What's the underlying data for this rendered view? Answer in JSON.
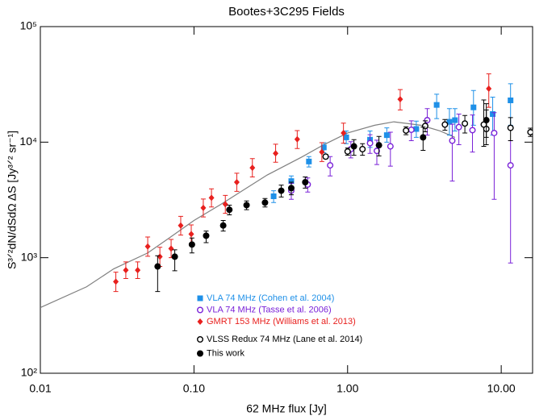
{
  "chart_data": {
    "type": "scatter",
    "title": "Bootes+3C295 Fields",
    "xlabel": "62 MHz flux [Jy]",
    "ylabel": "S³ᐟ²dN/dSdΩ ΔS [Jy³ᐟ² sr⁻¹]",
    "xlog": true,
    "ylog": true,
    "xlim": [
      0.01,
      16
    ],
    "ylim": [
      100,
      100000
    ],
    "xticks": [
      0.01,
      {
        "value": 0.1,
        "label": "0.10"
      },
      {
        "value": 1,
        "label": "1.00"
      },
      {
        "value": 10,
        "label": "10.00"
      }
    ],
    "yticks": [
      {
        "value": 100,
        "label": "10²"
      },
      {
        "value": 1000,
        "label": "10³"
      },
      {
        "value": 10000,
        "label": "10⁴"
      },
      {
        "value": 100000,
        "label": "10⁵"
      }
    ],
    "legend_loc": "lower left",
    "series": [
      {
        "color": "#808080",
        "marker": "line",
        "x": [
          0.01,
          0.02,
          0.03,
          0.05,
          0.07,
          0.1,
          0.15,
          0.2,
          0.3,
          0.5,
          0.7,
          1.0,
          1.5,
          2.0,
          3.0,
          4.0,
          5.0
        ],
        "y": [
          370,
          560,
          800,
          1100,
          1500,
          2100,
          2900,
          3700,
          5200,
          7400,
          9500,
          12000,
          14000,
          15000,
          14000,
          12500,
          11000
        ]
      },
      {
        "name": "VLA 74 MHz (Cohen et al. 2004)",
        "color": "#1e90e8",
        "marker": "square",
        "x": [
          0.33,
          0.43,
          0.56,
          0.7,
          0.98,
          1.4,
          1.8,
          2.8,
          3.8,
          4.6,
          5.0,
          6.6,
          8.8,
          11.5
        ],
        "y": [
          3400,
          4600,
          6800,
          9000,
          11000,
          10500,
          11500,
          13000,
          21000,
          15000,
          15500,
          20000,
          17500,
          23000
        ],
        "err_low": [
          400,
          500,
          700,
          900,
          1300,
          1500,
          1500,
          2000,
          5000,
          3500,
          3000,
          6000,
          6000,
          9000
        ],
        "err_high": [
          400,
          500,
          700,
          900,
          1500,
          2000,
          1800,
          2200,
          5000,
          4500,
          4000,
          8000,
          7000,
          9000
        ]
      },
      {
        "name": "VLA 74 MHz (Tasse et al. 2006)",
        "color": "#7a22d8",
        "marker": "open-circle",
        "x": [
          0.43,
          0.55,
          0.77,
          1.05,
          1.4,
          1.55,
          1.9,
          2.6,
          3.3,
          4.8,
          5.3,
          6.5,
          9.0,
          11.5
        ],
        "y": [
          3800,
          4300,
          6300,
          8700,
          9800,
          8400,
          9200,
          12800,
          15500,
          10300,
          13500,
          12700,
          12000,
          6300
        ],
        "err_low": [
          600,
          600,
          1200,
          1400,
          1800,
          2000,
          3000,
          2500,
          4000,
          5700,
          4000,
          4500,
          8800,
          5400
        ],
        "err_high": [
          600,
          600,
          1200,
          1400,
          1800,
          2000,
          3000,
          2500,
          4000,
          4000,
          4000,
          4500,
          6000,
          4000
        ]
      },
      {
        "name": "GMRT 153 MHz (Williams et al. 2013)",
        "color": "#e8201e",
        "marker": "diamond",
        "x": [
          0.031,
          0.036,
          0.043,
          0.05,
          0.06,
          0.071,
          0.082,
          0.096,
          0.115,
          0.13,
          0.16,
          0.19,
          0.24,
          0.34,
          0.47,
          0.68,
          0.94,
          2.2,
          8.3
        ],
        "y": [
          620,
          780,
          780,
          1250,
          1020,
          1200,
          1900,
          1600,
          2700,
          3300,
          2900,
          4500,
          6000,
          8000,
          10600,
          8200,
          12000,
          23500,
          29000
        ],
        "err_low": [
          110,
          120,
          120,
          220,
          180,
          200,
          330,
          280,
          450,
          550,
          480,
          750,
          1000,
          1300,
          1800,
          1400,
          2200,
          4500,
          9000
        ],
        "err_high": [
          130,
          140,
          140,
          260,
          210,
          240,
          380,
          320,
          520,
          640,
          560,
          880,
          1200,
          1600,
          2000,
          1700,
          2600,
          5000,
          10000
        ]
      },
      {
        "name": "VLSS Redux 74 MHz (Lane et al. 2014)",
        "color": "#000000",
        "marker": "open-circle",
        "x": [
          0.72,
          1.0,
          1.25,
          2.4,
          3.2,
          4.3,
          5.8,
          7.7,
          8.0,
          11.5,
          15.5
        ],
        "y": [
          7500,
          8300,
          8700,
          12600,
          13800,
          14200,
          14500,
          14200,
          13000,
          13300,
          12200
        ],
        "err_low": [
          300,
          600,
          1000,
          1000,
          1500,
          1500,
          2500,
          5000,
          3500,
          3000,
          1000
        ],
        "err_high": [
          300,
          600,
          1000,
          1000,
          1500,
          1500,
          2500,
          9000,
          6000,
          3000,
          1000
        ]
      },
      {
        "name": "This work",
        "color": "#000000",
        "marker": "circle",
        "x": [
          0.058,
          0.075,
          0.097,
          0.12,
          0.155,
          0.17,
          0.22,
          0.29,
          0.37,
          0.43,
          0.53,
          1.1,
          1.6,
          3.1,
          8.0
        ],
        "y": [
          840,
          1020,
          1300,
          1550,
          1900,
          2600,
          2850,
          3000,
          3800,
          4000,
          4500,
          9200,
          9400,
          11000,
          15500
        ],
        "err_low": [
          330,
          250,
          200,
          200,
          200,
          250,
          250,
          250,
          450,
          500,
          500,
          1500,
          1800,
          2500,
          4500
        ],
        "err_high": [
          200,
          150,
          180,
          150,
          200,
          250,
          250,
          250,
          450,
          500,
          500,
          1300,
          1800,
          2500,
          6000
        ]
      }
    ]
  }
}
